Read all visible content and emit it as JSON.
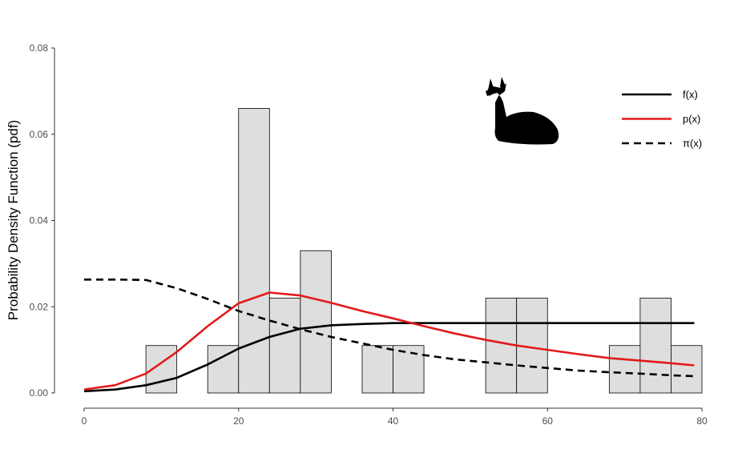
{
  "chart_data": {
    "type": "bar",
    "title": "",
    "xlabel": "",
    "ylabel": "Probability Density Function (pdf)",
    "xlim": [
      0,
      80
    ],
    "ylim": [
      0,
      0.08
    ],
    "grid": false,
    "legend_position": "top-right",
    "x_ticks": [
      0,
      20,
      40,
      60,
      80
    ],
    "y_ticks": [
      "0.00",
      "0.02",
      "0.04",
      "0.06",
      "0.08"
    ],
    "histogram": {
      "bins": [
        {
          "x0": 8,
          "x1": 12,
          "density": 0.011
        },
        {
          "x0": 16,
          "x1": 20,
          "density": 0.011
        },
        {
          "x0": 20,
          "x1": 24,
          "density": 0.066
        },
        {
          "x0": 24,
          "x1": 28,
          "density": 0.022
        },
        {
          "x0": 28,
          "x1": 32,
          "density": 0.033
        },
        {
          "x0": 36,
          "x1": 40,
          "density": 0.011
        },
        {
          "x0": 40,
          "x1": 44,
          "density": 0.011
        },
        {
          "x0": 52,
          "x1": 56,
          "density": 0.022
        },
        {
          "x0": 56,
          "x1": 60,
          "density": 0.022
        },
        {
          "x0": 68,
          "x1": 72,
          "density": 0.011
        },
        {
          "x0": 72,
          "x1": 76,
          "density": 0.022
        },
        {
          "x0": 76,
          "x1": 80,
          "density": 0.011
        }
      ],
      "fill": "#dedede",
      "stroke": "#000000"
    },
    "series": [
      {
        "name": "f(x)",
        "color": "#000000",
        "dash": "solid",
        "x": [
          0,
          4,
          8,
          12,
          16,
          20,
          24,
          28,
          32,
          36,
          40,
          44,
          48,
          52,
          56,
          60,
          64,
          68,
          72,
          76,
          79
        ],
        "y": [
          0.0004,
          0.0008,
          0.0018,
          0.0035,
          0.0066,
          0.0103,
          0.013,
          0.0149,
          0.0157,
          0.016,
          0.0162,
          0.0162,
          0.0162,
          0.0162,
          0.0162,
          0.0162,
          0.0162,
          0.0162,
          0.0162,
          0.0162,
          0.0162
        ]
      },
      {
        "name": "p(x)",
        "color": "#e31a1c",
        "dash": "solid",
        "x": [
          0,
          4,
          8,
          12,
          16,
          20,
          24,
          28,
          32,
          36,
          40,
          44,
          48,
          52,
          56,
          60,
          64,
          68,
          72,
          76,
          79
        ],
        "y": [
          0.0008,
          0.0018,
          0.0045,
          0.0095,
          0.0155,
          0.0208,
          0.0233,
          0.0226,
          0.0209,
          0.019,
          0.0173,
          0.0155,
          0.0138,
          0.0123,
          0.011,
          0.01,
          0.009,
          0.0081,
          0.0075,
          0.0069,
          0.0064
        ]
      },
      {
        "name": "π(x)",
        "color": "#000000",
        "dash": "dashed",
        "x": [
          0,
          4,
          8,
          12,
          16,
          20,
          24,
          28,
          32,
          36,
          40,
          44,
          48,
          52,
          56,
          60,
          64,
          68,
          72,
          76,
          79
        ],
        "y": [
          0.0263,
          0.0263,
          0.0262,
          0.0243,
          0.0218,
          0.019,
          0.0168,
          0.0148,
          0.013,
          0.0115,
          0.01,
          0.0088,
          0.0078,
          0.0071,
          0.0064,
          0.0058,
          0.0052,
          0.0048,
          0.0045,
          0.0041,
          0.0039
        ]
      }
    ]
  }
}
